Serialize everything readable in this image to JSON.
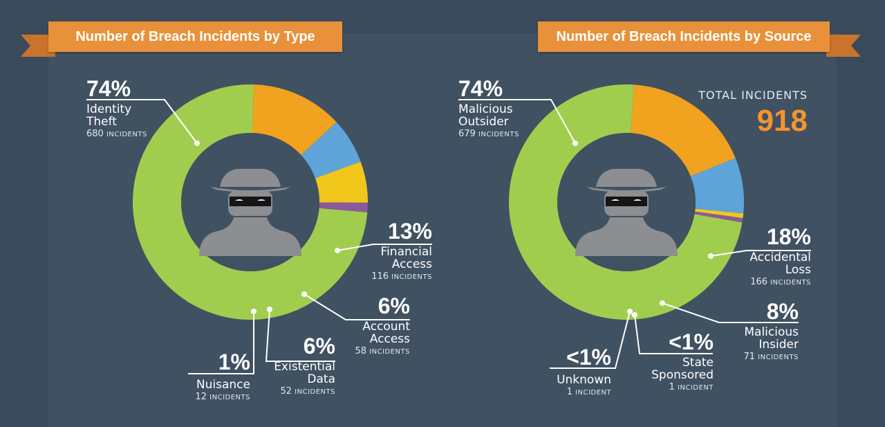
{
  "colors": {
    "green": "#a1cd4f",
    "orange": "#f1a21f",
    "blue": "#5fa4d8",
    "yellow": "#f2c71b",
    "purple": "#8a5a9a",
    "banner": "#e8913a",
    "total": "#f4932f"
  },
  "total": {
    "label": "TOTAL INCIDENTS",
    "value": "918"
  },
  "chart_data": [
    {
      "type": "pie",
      "title": "Number of Breach Incidents by Type",
      "series": [
        {
          "name": "Identity Theft",
          "percent_label": "74%",
          "value": 680,
          "count_label": "680",
          "unit_label": "INCIDENTS",
          "color": "#a1cd4f"
        },
        {
          "name": "Financial Access",
          "percent_label": "13%",
          "value": 116,
          "count_label": "116",
          "unit_label": "INCIDENTS",
          "color": "#f1a21f"
        },
        {
          "name": "Account Access",
          "percent_label": "6%",
          "value": 58,
          "count_label": "58",
          "unit_label": "INCIDENTS",
          "color": "#5fa4d8"
        },
        {
          "name": "Existential Data",
          "percent_label": "6%",
          "value": 52,
          "count_label": "52",
          "unit_label": "INCIDENTS",
          "color": "#f2c71b"
        },
        {
          "name": "Nuisance",
          "percent_label": "1%",
          "value": 12,
          "count_label": "12",
          "unit_label": "INCIDENTS",
          "color": "#8a5a9a"
        }
      ]
    },
    {
      "type": "pie",
      "title": "Number of Breach Incidents by Source",
      "series": [
        {
          "name": "Malicious Outsider",
          "percent_label": "74%",
          "value": 679,
          "count_label": "679",
          "unit_label": "INCIDENTS",
          "color": "#a1cd4f"
        },
        {
          "name": "Accidental Loss",
          "percent_label": "18%",
          "value": 166,
          "count_label": "166",
          "unit_label": "INCIDENTS",
          "color": "#f1a21f"
        },
        {
          "name": "Malicious Insider",
          "percent_label": "8%",
          "value": 71,
          "count_label": "71",
          "unit_label": "INCIDENTS",
          "color": "#5fa4d8"
        },
        {
          "name": "State Sponsored",
          "percent_label": "<1%",
          "value": 1,
          "count_label": "1",
          "unit_label": "INCIDENT",
          "color": "#f2c71b"
        },
        {
          "name": "Unknown",
          "percent_label": "<1%",
          "value": 1,
          "count_label": "1",
          "unit_label": "INCIDENT",
          "color": "#8a5a9a"
        }
      ]
    }
  ]
}
